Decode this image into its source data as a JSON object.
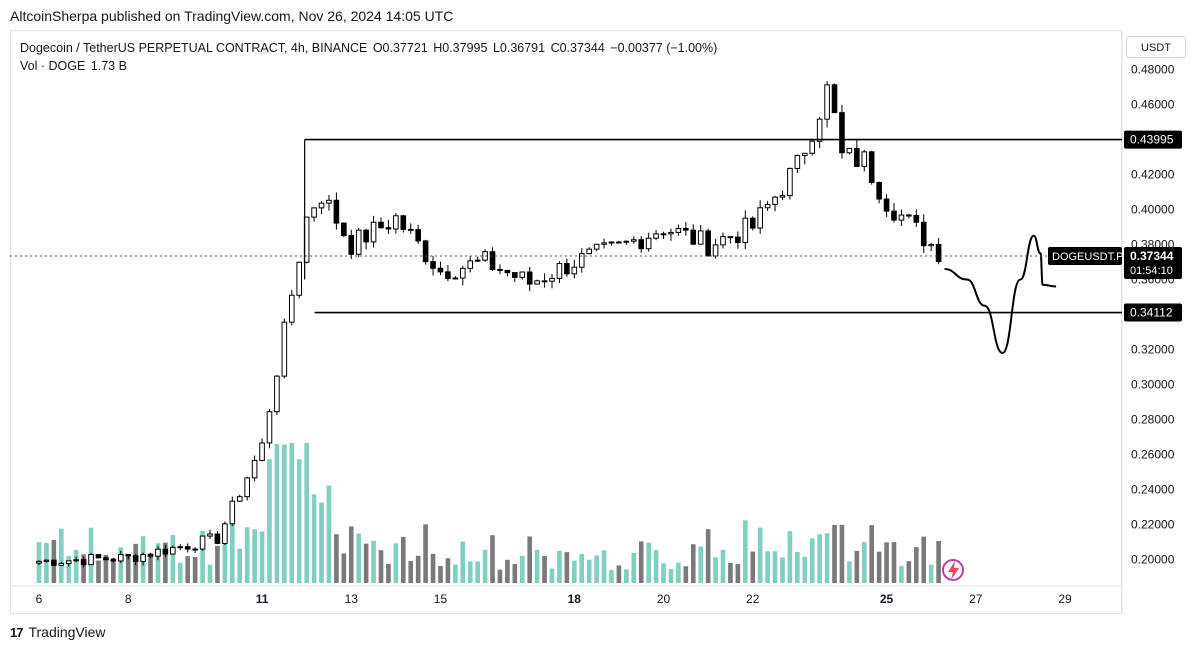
{
  "header": {
    "published": "AltcoinSherpa published on TradingView.com, Nov 26, 2024 14:05 UTC"
  },
  "legend": {
    "symbol": "Dogecoin / TetherUS PERPETUAL CONTRACT, 4h, BINANCE",
    "open": "O0.37721",
    "high": "H0.37995",
    "low": "L0.36791",
    "close": "C0.37344",
    "change": "−0.00377 (−1.00%)",
    "volume_label": "Vol · DOGE",
    "volume_value": "1.73 B"
  },
  "currency_button": "USDT",
  "price_labels": {
    "upper": "0.43995",
    "lower": "0.34112",
    "ticker": "DOGEUSDT.P",
    "last": "0.37344",
    "countdown": "01:54:10"
  },
  "footer": {
    "brand": "TradingView",
    "logo": "17"
  },
  "colors": {
    "up_body": "#ffffff",
    "down_body": "#000000",
    "vol_up": "#7fcfc2",
    "vol_down": "#7a7a7a",
    "line": "#000000"
  },
  "chart_data": {
    "type": "candlestick",
    "title": "Dogecoin / TetherUS PERPETUAL CONTRACT, 4h, BINANCE",
    "ylim": [
      0.19,
      0.485
    ],
    "y_ticks": [
      "0.48000",
      "0.46000",
      "0.42000",
      "0.40000",
      "0.38000",
      "0.36000",
      "0.32000",
      "0.30000",
      "0.28000",
      "0.26000",
      "0.24000",
      "0.22000",
      "0.20000"
    ],
    "x_ticks": [
      "6",
      "8",
      "11",
      "13",
      "15",
      "18",
      "20",
      "22",
      "25",
      "27",
      "29"
    ],
    "x_range": [
      "6",
      "29"
    ],
    "grid": false,
    "levels": [
      {
        "label": "0.43995",
        "value": 0.43995,
        "from": "12",
        "to": "29"
      },
      {
        "label": "0.34112",
        "value": 0.34112,
        "from": "12",
        "to": "29"
      }
    ],
    "anchors": [
      {
        "x": "6",
        "y": 0.199
      },
      {
        "x": "8",
        "y": 0.201
      },
      {
        "x": "10",
        "y": 0.212
      },
      {
        "x": "11",
        "y": 0.265
      },
      {
        "x": "11.5",
        "y": 0.33
      },
      {
        "x": "12",
        "y": 0.395
      },
      {
        "x": "12.3",
        "y": 0.41
      },
      {
        "x": "13",
        "y": 0.38
      },
      {
        "x": "14",
        "y": 0.395
      },
      {
        "x": "15",
        "y": 0.365
      },
      {
        "x": "16",
        "y": 0.37
      },
      {
        "x": "17",
        "y": 0.358
      },
      {
        "x": "18",
        "y": 0.37
      },
      {
        "x": "19",
        "y": 0.378
      },
      {
        "x": "20",
        "y": 0.39
      },
      {
        "x": "21",
        "y": 0.38
      },
      {
        "x": "22",
        "y": 0.39
      },
      {
        "x": "23",
        "y": 0.425
      },
      {
        "x": "23.7",
        "y": 0.47
      },
      {
        "x": "24",
        "y": 0.43
      },
      {
        "x": "24.5",
        "y": 0.428
      },
      {
        "x": "25",
        "y": 0.405
      },
      {
        "x": "25.5",
        "y": 0.392
      },
      {
        "x": "26.3",
        "y": 0.373
      }
    ],
    "forecast_path": [
      {
        "x": "26.3",
        "y": 0.366
      },
      {
        "x": "26.8",
        "y": 0.36
      },
      {
        "x": "27.2",
        "y": 0.345
      },
      {
        "x": "27.6",
        "y": 0.318
      },
      {
        "x": "28",
        "y": 0.36
      },
      {
        "x": "28.3",
        "y": 0.385
      },
      {
        "x": "28.45",
        "y": 0.375
      },
      {
        "x": "28.5",
        "y": 0.357
      },
      {
        "x": "28.8",
        "y": 0.356
      }
    ]
  }
}
